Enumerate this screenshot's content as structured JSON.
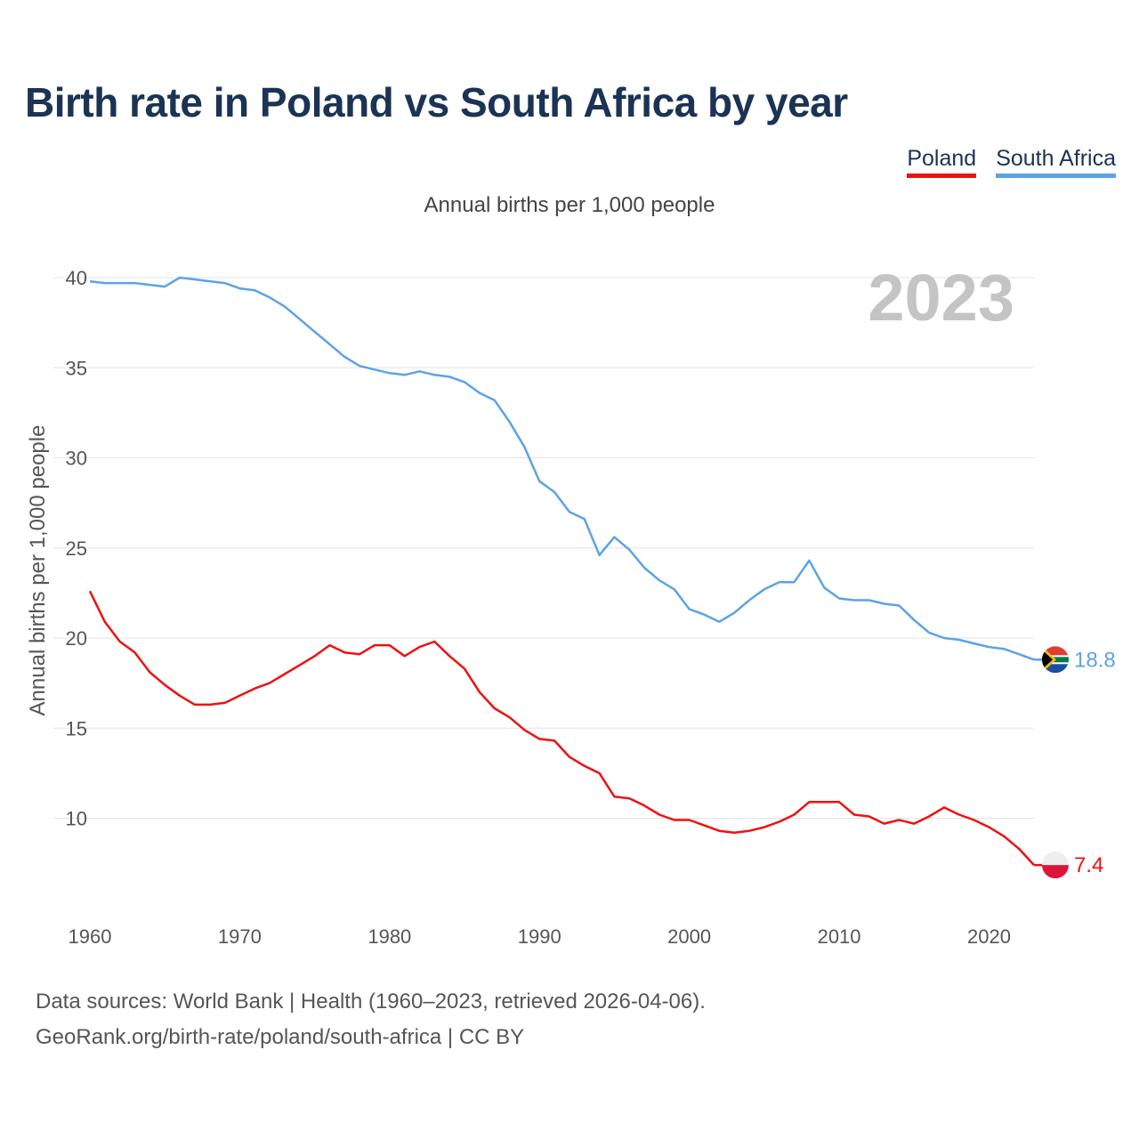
{
  "title": "Birth rate in Poland vs South Africa by year",
  "subtitle": "Annual births per 1,000 people",
  "year_watermark": "2023",
  "source_line1": "Data sources: World Bank | Health (1960–2023, retrieved 2026-04-06).",
  "source_line2": "GeoRank.org/birth-rate/poland/south-africa | CC BY",
  "colors": {
    "poland": "#ee1111",
    "south_africa": "#5ba3e6",
    "grid": "#e4e4e4",
    "axis_text": "#555555"
  },
  "chart_data": {
    "type": "line",
    "title": "Birth rate in Poland vs South Africa by year",
    "ylabel": "Annual births per 1,000 people",
    "xlabel": "",
    "xlim": [
      1960,
      2023
    ],
    "ylim": [
      5.5,
      41
    ],
    "yticks": [
      10,
      15,
      20,
      25,
      30,
      35,
      40
    ],
    "xticks": [
      1960,
      1970,
      1980,
      1990,
      2000,
      2010,
      2020
    ],
    "grid": true,
    "legend": "top-right",
    "x": [
      1960,
      1961,
      1962,
      1963,
      1964,
      1965,
      1966,
      1967,
      1968,
      1969,
      1970,
      1971,
      1972,
      1973,
      1974,
      1975,
      1976,
      1977,
      1978,
      1979,
      1980,
      1981,
      1982,
      1983,
      1984,
      1985,
      1986,
      1987,
      1988,
      1989,
      1990,
      1991,
      1992,
      1993,
      1994,
      1995,
      1996,
      1997,
      1998,
      1999,
      2000,
      2001,
      2002,
      2003,
      2004,
      2005,
      2006,
      2007,
      2008,
      2009,
      2010,
      2011,
      2012,
      2013,
      2014,
      2015,
      2016,
      2017,
      2018,
      2019,
      2020,
      2021,
      2022,
      2023
    ],
    "series": [
      {
        "name": "Poland",
        "end_label": "7.4",
        "values": [
          22.6,
          20.9,
          19.8,
          19.2,
          18.1,
          17.4,
          16.8,
          16.3,
          16.3,
          16.4,
          16.8,
          17.2,
          17.5,
          18.0,
          18.5,
          19.0,
          19.6,
          19.2,
          19.1,
          19.6,
          19.6,
          19.0,
          19.5,
          19.8,
          19.0,
          18.3,
          17.0,
          16.1,
          15.6,
          14.9,
          14.4,
          14.3,
          13.4,
          12.9,
          12.5,
          11.2,
          11.1,
          10.7,
          10.2,
          9.9,
          9.9,
          9.6,
          9.3,
          9.2,
          9.3,
          9.5,
          9.8,
          10.2,
          10.9,
          10.9,
          10.9,
          10.2,
          10.1,
          9.7,
          9.9,
          9.7,
          10.1,
          10.6,
          10.2,
          9.9,
          9.5,
          9.0,
          8.3,
          7.4
        ]
      },
      {
        "name": "South Africa",
        "end_label": "18.8",
        "values": [
          39.8,
          39.7,
          39.7,
          39.7,
          39.6,
          39.5,
          40.0,
          39.9,
          39.8,
          39.7,
          39.4,
          39.3,
          38.9,
          38.4,
          37.7,
          37.0,
          36.3,
          35.6,
          35.1,
          34.9,
          34.7,
          34.6,
          34.8,
          34.6,
          34.5,
          34.2,
          33.6,
          33.2,
          32.0,
          30.6,
          28.7,
          28.1,
          27.0,
          26.6,
          24.6,
          25.6,
          24.9,
          23.9,
          23.2,
          22.7,
          21.6,
          21.3,
          20.9,
          21.4,
          22.1,
          22.7,
          23.1,
          23.1,
          24.3,
          22.8,
          22.2,
          22.1,
          22.1,
          21.9,
          21.8,
          21.0,
          20.3,
          20.0,
          19.9,
          19.7,
          19.5,
          19.4,
          19.1,
          18.8
        ]
      }
    ]
  }
}
